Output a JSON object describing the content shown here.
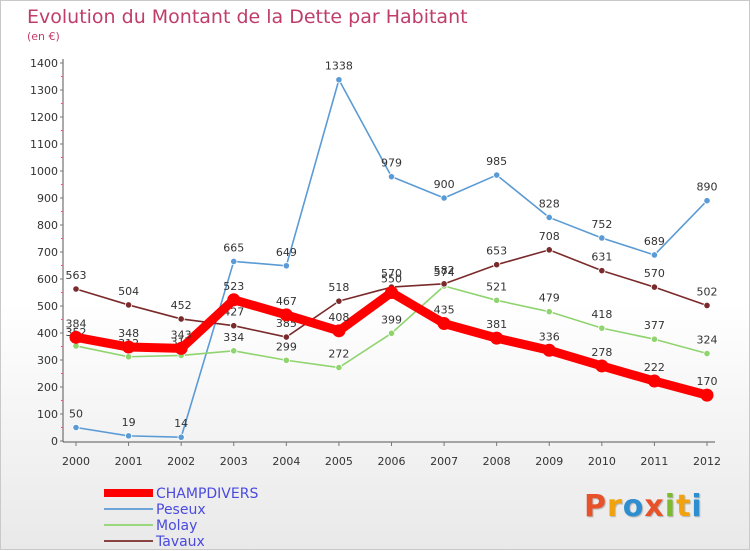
{
  "header": {
    "title": "Evolution du Montant de la Dette par Habitant",
    "subtitle": "(en €)"
  },
  "logo": {
    "text": "Proxiti",
    "letters": [
      {
        "ch": "P",
        "color": "#e8522a"
      },
      {
        "ch": "r",
        "color": "#f2a20c"
      },
      {
        "ch": "o",
        "color": "#2f8ecf"
      },
      {
        "ch": "x",
        "color": "#e8522a"
      },
      {
        "ch": "i",
        "color": "#7dbb2e"
      },
      {
        "ch": "t",
        "color": "#f2a20c"
      },
      {
        "ch": "i",
        "color": "#2f8ecf"
      }
    ]
  },
  "chart_data": {
    "type": "line",
    "title": "Evolution du Montant de la Dette par Habitant",
    "subtitle": "(en €)",
    "xlabel": "",
    "ylabel": "",
    "x": [
      "2000",
      "2001",
      "2002",
      "2003",
      "2004",
      "2005",
      "2006",
      "2007",
      "2008",
      "2009",
      "2010",
      "2011",
      "2012"
    ],
    "ylim": [
      0,
      1400
    ],
    "yticks": [
      "0",
      "100",
      "200",
      "300",
      "400",
      "500",
      "600",
      "700",
      "800",
      "900",
      "1000",
      "1100",
      "1200",
      "1300",
      "1400"
    ],
    "grid": false,
    "legend_position": "bottom-left",
    "series": [
      {
        "name": "Peseux",
        "color": "#5b9bd5",
        "values": [
          50,
          19,
          14,
          665,
          649,
          1338,
          979,
          900,
          985,
          828,
          752,
          689,
          890
        ]
      },
      {
        "name": "Molay",
        "color": "#8fd46f",
        "values": [
          352,
          312,
          317,
          334,
          299,
          272,
          399,
          574,
          521,
          479,
          418,
          377,
          324
        ]
      },
      {
        "name": "Tavaux",
        "color": "#7a2a2a",
        "values": [
          563,
          504,
          452,
          427,
          385,
          518,
          570,
          582,
          653,
          708,
          631,
          570,
          502
        ]
      },
      {
        "name": "CHAMPDIVERS",
        "color": "#ff0000",
        "values": [
          384,
          348,
          343,
          523,
          467,
          408,
          550,
          435,
          381,
          336,
          278,
          222,
          170
        ]
      }
    ]
  }
}
